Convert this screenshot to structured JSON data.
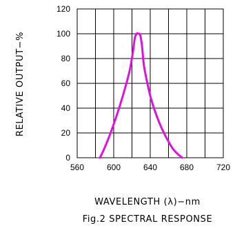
{
  "chart_data": {
    "type": "line",
    "xlabel": "WAVELENGTH (λ)−nm",
    "ylabel": "RELATIVE OUTPUT−%",
    "caption": "Fig.2 SPECTRAL RESPONSE",
    "xlim": [
      560,
      720
    ],
    "ylim": [
      0,
      120
    ],
    "x_ticks": [
      560,
      600,
      640,
      680,
      720
    ],
    "x_tick_labels": [
      "560",
      "600",
      "640",
      "680",
      "720"
    ],
    "y_ticks": [
      0,
      20,
      40,
      60,
      80,
      100,
      120
    ],
    "y_tick_labels": [
      "0",
      "20",
      "40",
      "60",
      "80",
      "100",
      "120"
    ],
    "x_grid_step": 20,
    "grid": true,
    "series": [
      {
        "color": "#e011e0",
        "x": [
          585,
          590,
          595,
          600,
          605,
          610,
          615,
          618,
          621,
          623,
          625,
          627,
          629,
          631,
          633,
          636,
          640,
          645,
          650,
          655,
          660,
          665,
          670,
          675
        ],
        "y": [
          0,
          8,
          17,
          27,
          38,
          50,
          63,
          72,
          85,
          96,
          100,
          100,
          99,
          90,
          75,
          63,
          50,
          38,
          28,
          20,
          13,
          7,
          3,
          0
        ]
      }
    ]
  }
}
